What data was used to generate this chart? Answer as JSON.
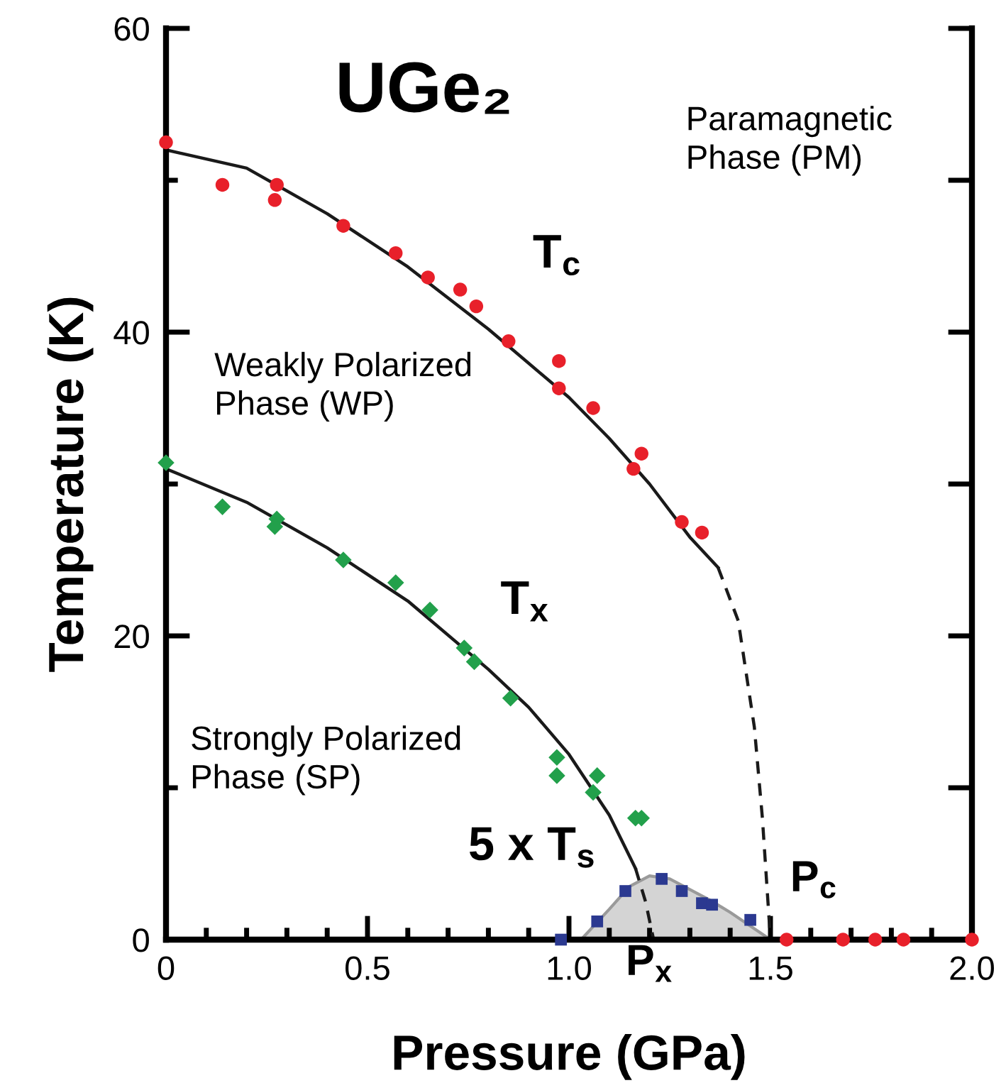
{
  "chart_data": {
    "type": "scatter",
    "title": "UGe₂",
    "xlabel": "Pressure (GPa)",
    "ylabel": "Temperature (K)",
    "xlim": [
      0,
      2.0
    ],
    "ylim": [
      0,
      60
    ],
    "xticks": [
      0,
      {
        "value": 0.1,
        "label": null
      },
      {
        "value": 0.2,
        "label": null
      },
      {
        "value": 0.3,
        "label": null
      },
      {
        "value": 0.4,
        "label": null
      },
      0.5,
      {
        "value": 0.6,
        "label": null
      },
      {
        "value": 0.7,
        "label": null
      },
      {
        "value": 0.8,
        "label": null
      },
      {
        "value": 0.9,
        "label": null
      },
      {
        "value": 1.0,
        "label": "1.0"
      },
      {
        "value": 1.1,
        "label": null
      },
      {
        "value": 1.2,
        "label": null
      },
      {
        "value": 1.3,
        "label": null
      },
      {
        "value": 1.4,
        "label": null
      },
      1.5,
      {
        "value": 1.6,
        "label": null
      },
      {
        "value": 1.7,
        "label": null
      },
      {
        "value": 1.8,
        "label": null
      },
      {
        "value": 1.9,
        "label": null
      },
      {
        "value": 2.0,
        "label": "2.0"
      }
    ],
    "yticks": [
      0,
      {
        "value": 10,
        "label": null
      },
      20,
      {
        "value": 30,
        "label": null
      },
      40,
      {
        "value": 50,
        "label": null
      },
      60
    ],
    "grid": false,
    "legend": false,
    "series": [
      {
        "type": "area",
        "color": "#d4d4d4",
        "x": [
          1.03,
          1.1,
          1.15,
          1.2,
          1.25,
          1.3,
          1.35,
          1.4,
          1.45,
          1.5
        ],
        "values": [
          0,
          2.0,
          3.5,
          4.2,
          4.0,
          3.3,
          2.6,
          1.8,
          0.9,
          0
        ]
      },
      {
        "type": "line",
        "color": "#1a1a1a",
        "line_style": "solid",
        "marker": "none",
        "x": [
          0,
          0.2,
          0.4,
          0.6,
          0.8,
          1.0,
          1.1,
          1.2,
          1.3,
          1.37
        ],
        "values": [
          52,
          50.8,
          47.8,
          44.3,
          40.2,
          35.7,
          33,
          30,
          26.5,
          24.5
        ]
      },
      {
        "type": "line",
        "color": "#1a1a1a",
        "line_style": "dashed",
        "marker": "none",
        "x": [
          1.37,
          1.42,
          1.46,
          1.48,
          1.49,
          1.5
        ],
        "values": [
          24.5,
          21,
          14,
          8,
          4,
          0
        ]
      },
      {
        "type": "line",
        "color": "#1a1a1a",
        "line_style": "solid",
        "marker": "none",
        "x": [
          0,
          0.2,
          0.4,
          0.6,
          0.8,
          0.9,
          1.0,
          1.1,
          1.165
        ],
        "values": [
          31,
          28.8,
          25.8,
          22.3,
          17.8,
          15.3,
          12.2,
          8.2,
          4.7
        ]
      },
      {
        "type": "line",
        "color": "#1a1a1a",
        "line_style": "dashed",
        "marker": "none",
        "x": [
          1.165,
          1.19,
          1.21
        ],
        "values": [
          4.7,
          2.5,
          0
        ]
      },
      {
        "color": "#e8202a",
        "marker": "circle",
        "x": [
          0,
          0.14,
          0.275,
          0.27,
          0.44,
          0.57,
          0.65,
          0.73,
          0.77,
          0.85,
          0.975,
          0.975,
          1.06,
          1.18,
          1.16,
          1.28,
          1.33,
          1.54,
          1.68,
          1.76,
          1.83,
          2.0
        ],
        "values": [
          52.5,
          49.7,
          49.7,
          48.7,
          47.0,
          45.2,
          43.6,
          42.8,
          41.7,
          39.4,
          38.1,
          36.3,
          35.0,
          32.0,
          31.0,
          27.5,
          26.8,
          0,
          0,
          0,
          0,
          0
        ]
      },
      {
        "color": "#22a04b",
        "marker": "diamond",
        "x": [
          0,
          0.14,
          0.275,
          0.27,
          0.44,
          0.57,
          0.655,
          0.74,
          0.765,
          0.855,
          0.97,
          0.97,
          1.07,
          1.06,
          1.165,
          1.18
        ],
        "values": [
          31.4,
          28.5,
          27.7,
          27.2,
          25.0,
          23.5,
          21.7,
          19.2,
          18.3,
          15.9,
          12.0,
          10.8,
          10.8,
          9.7,
          8.0,
          8.0
        ]
      },
      {
        "color": "#2b3990",
        "marker": "square",
        "x": [
          0.98,
          1.07,
          1.14,
          1.23,
          1.28,
          1.33,
          1.355,
          1.45
        ],
        "values": [
          0,
          1.2,
          3.2,
          4.0,
          3.2,
          2.4,
          2.3,
          1.3
        ]
      }
    ],
    "annotations": [
      "Paramagnetic\nPhase (PM)",
      "Weakly Polarized\nPhase (WP)",
      "Strongly Polarized\nPhase (SP)",
      "T$_{c}$",
      "T$_{x}$",
      "5 x T$_{s}$",
      {
        "text": "P$_{x}$",
        "x": 1.2,
        "y": 0
      },
      {
        "text": "P$_{c}$",
        "x": 1.5,
        "y": 0
      }
    ]
  }
}
